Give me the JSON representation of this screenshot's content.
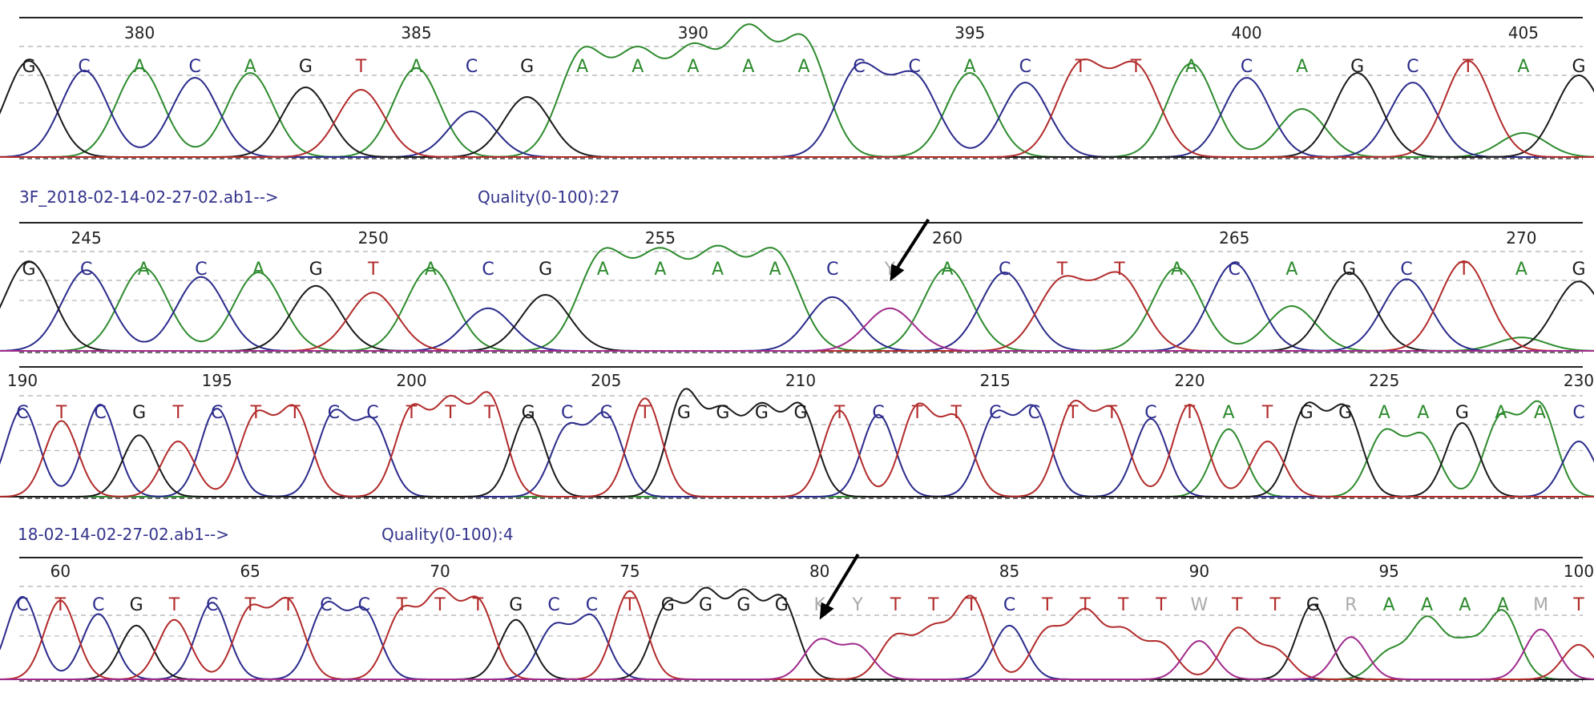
{
  "colors": {
    "A": "#2e8b2e",
    "C": "#2b2b8c",
    "G": "#1a1a1a",
    "T": "#b22b2b",
    "N": "#aaaaaa",
    "mixed": "#a02b8c",
    "info_text": "#33338c"
  },
  "chart_data": [
    {
      "type": "line",
      "title": "",
      "positions": [
        380,
        385,
        390,
        395,
        400,
        405
      ],
      "first_pos": 378,
      "bases": "GCACAGTACGAAAAACCACTTACAGCTAG",
      "peaks": [
        0.8,
        0.72,
        0.74,
        0.66,
        0.7,
        0.58,
        0.56,
        0.74,
        0.38,
        0.5,
        0.86,
        0.82,
        0.84,
        1.0,
        0.95,
        0.74,
        0.66,
        0.7,
        0.62,
        0.76,
        0.74,
        0.78,
        0.66,
        0.4,
        0.7,
        0.62,
        0.8,
        0.2,
        0.68
      ]
    },
    {
      "type": "line",
      "title": "",
      "file": "3F_2018-02-14-02-27-02.ab1-->",
      "quality": "Quality(0-100):27",
      "positions": [
        245,
        250,
        255,
        260,
        265,
        270
      ],
      "first_pos": 244,
      "bases": "GCACAGTACGAAAACYACTTACAGCTAG",
      "arrow_base_index": 15,
      "peaks": [
        0.8,
        0.72,
        0.74,
        0.66,
        0.7,
        0.58,
        0.52,
        0.74,
        0.38,
        0.5,
        0.86,
        0.82,
        0.84,
        0.86,
        0.48,
        0.38,
        0.74,
        0.7,
        0.62,
        0.66,
        0.74,
        0.78,
        0.4,
        0.7,
        0.64,
        0.8,
        0.12,
        0.62
      ]
    },
    {
      "type": "line",
      "title": "",
      "positions": [
        190,
        195,
        200,
        205,
        210,
        215,
        220,
        225,
        230
      ],
      "first_pos": 190,
      "bases": "CTCGTCTTCCTTTGCCTGGGGTCTTCCTTCTATGGAAGAAC",
      "peaks": [
        0.86,
        0.74,
        0.9,
        0.6,
        0.54,
        0.86,
        0.78,
        0.84,
        0.8,
        0.72,
        0.84,
        0.88,
        0.96,
        0.8,
        0.66,
        0.78,
        0.96,
        1.0,
        0.78,
        0.82,
        0.86,
        0.84,
        0.8,
        0.86,
        0.74,
        0.78,
        0.84,
        0.88,
        0.82,
        0.76,
        0.9,
        0.66,
        0.54,
        0.86,
        0.84,
        0.62,
        0.58,
        0.72,
        0.76,
        0.88,
        0.54
      ]
    },
    {
      "type": "line",
      "title": "",
      "file": "18-02-14-02-27-02.ab1-->",
      "quality": "Quality(0-100):4",
      "positions": [
        60,
        65,
        70,
        75,
        80,
        85,
        90,
        95,
        100
      ],
      "first_pos": 59,
      "bases": "CTCGTCTTCCTTTGCCTGGGGKYTTTCTTTTWTTGRAAAAMT",
      "arrow_base_index": 21,
      "peaks": [
        0.86,
        0.82,
        0.68,
        0.56,
        0.62,
        0.8,
        0.72,
        0.8,
        0.76,
        0.7,
        0.7,
        0.86,
        0.8,
        0.62,
        0.54,
        0.64,
        0.92,
        0.76,
        0.86,
        0.84,
        0.82,
        0.4,
        0.34,
        0.44,
        0.5,
        0.84,
        0.56,
        0.5,
        0.68,
        0.48,
        0.36,
        0.4,
        0.52,
        0.3,
        0.78,
        0.44,
        0.28,
        0.62,
        0.36,
        0.7,
        0.52,
        0.36
      ]
    }
  ]
}
